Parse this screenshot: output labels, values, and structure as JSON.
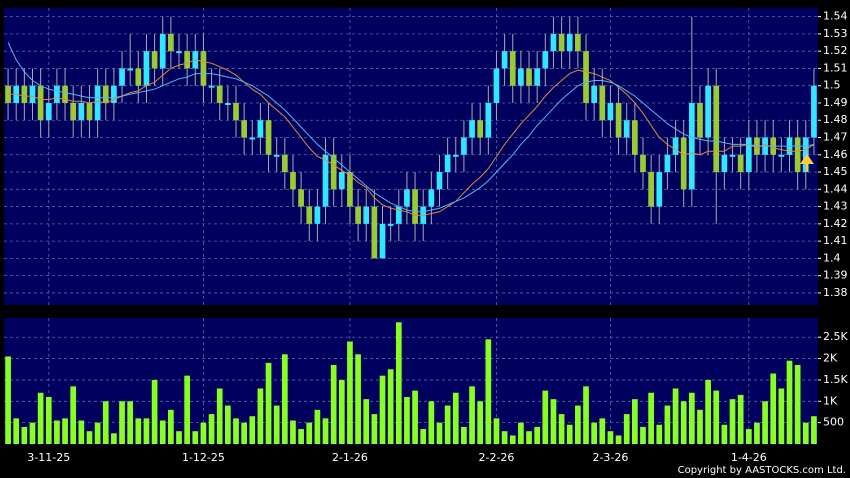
{
  "chart_data": [
    {
      "type": "candlestick",
      "open": [
        1.5,
        1.49,
        1.5,
        1.49,
        1.5,
        1.48,
        1.49,
        1.5,
        1.49,
        1.48,
        1.49,
        1.48,
        1.5,
        1.49,
        1.5,
        1.51,
        1.51,
        1.5,
        1.52,
        1.51,
        1.53,
        1.52,
        1.52,
        1.51,
        1.52,
        1.5,
        1.5,
        1.49,
        1.49,
        1.48,
        1.47,
        1.47,
        1.48,
        1.46,
        1.46,
        1.45,
        1.44,
        1.43,
        1.42,
        1.43,
        1.46,
        1.44,
        1.45,
        1.43,
        1.42,
        1.43,
        1.4,
        1.42,
        1.42,
        1.43,
        1.44,
        1.42,
        1.43,
        1.44,
        1.45,
        1.46,
        1.46,
        1.47,
        1.48,
        1.47,
        1.49,
        1.51,
        1.52,
        1.5,
        1.51,
        1.5,
        1.51,
        1.52,
        1.53,
        1.52,
        1.53,
        1.52,
        1.49,
        1.5,
        1.48,
        1.49,
        1.47,
        1.48,
        1.46,
        1.45,
        1.43,
        1.45,
        1.46,
        1.47,
        1.44,
        1.49,
        1.47,
        1.5,
        1.45,
        1.46,
        1.46,
        1.45,
        1.47,
        1.46,
        1.47,
        1.46,
        1.46,
        1.47,
        1.45,
        1.47
      ],
      "high": [
        1.51,
        1.51,
        1.51,
        1.51,
        1.51,
        1.5,
        1.51,
        1.51,
        1.5,
        1.5,
        1.5,
        1.51,
        1.51,
        1.51,
        1.52,
        1.53,
        1.52,
        1.53,
        1.53,
        1.54,
        1.54,
        1.53,
        1.53,
        1.53,
        1.53,
        1.51,
        1.51,
        1.5,
        1.5,
        1.49,
        1.48,
        1.49,
        1.49,
        1.47,
        1.47,
        1.46,
        1.45,
        1.44,
        1.44,
        1.47,
        1.47,
        1.46,
        1.46,
        1.44,
        1.44,
        1.44,
        1.43,
        1.43,
        1.44,
        1.45,
        1.45,
        1.44,
        1.45,
        1.46,
        1.47,
        1.47,
        1.48,
        1.49,
        1.49,
        1.5,
        1.52,
        1.53,
        1.53,
        1.52,
        1.52,
        1.52,
        1.53,
        1.54,
        1.54,
        1.54,
        1.54,
        1.53,
        1.51,
        1.51,
        1.5,
        1.5,
        1.49,
        1.49,
        1.47,
        1.46,
        1.46,
        1.47,
        1.48,
        1.48,
        1.54,
        1.5,
        1.51,
        1.51,
        1.47,
        1.47,
        1.47,
        1.48,
        1.48,
        1.48,
        1.48,
        1.47,
        1.48,
        1.48,
        1.48,
        1.51
      ],
      "low": [
        1.48,
        1.48,
        1.48,
        1.48,
        1.47,
        1.47,
        1.48,
        1.48,
        1.47,
        1.47,
        1.47,
        1.47,
        1.48,
        1.48,
        1.49,
        1.5,
        1.49,
        1.49,
        1.5,
        1.5,
        1.51,
        1.51,
        1.5,
        1.5,
        1.49,
        1.49,
        1.48,
        1.48,
        1.47,
        1.46,
        1.46,
        1.46,
        1.45,
        1.45,
        1.44,
        1.43,
        1.42,
        1.41,
        1.41,
        1.42,
        1.43,
        1.43,
        1.42,
        1.41,
        1.41,
        1.4,
        1.4,
        1.41,
        1.41,
        1.42,
        1.41,
        1.41,
        1.42,
        1.43,
        1.44,
        1.45,
        1.45,
        1.46,
        1.46,
        1.46,
        1.48,
        1.5,
        1.49,
        1.49,
        1.49,
        1.49,
        1.5,
        1.51,
        1.51,
        1.51,
        1.51,
        1.48,
        1.48,
        1.47,
        1.47,
        1.46,
        1.46,
        1.45,
        1.44,
        1.42,
        1.42,
        1.44,
        1.45,
        1.43,
        1.43,
        1.46,
        1.46,
        1.42,
        1.44,
        1.45,
        1.44,
        1.44,
        1.45,
        1.45,
        1.45,
        1.45,
        1.45,
        1.44,
        1.44,
        1.46
      ],
      "close": [
        1.49,
        1.5,
        1.49,
        1.5,
        1.48,
        1.49,
        1.5,
        1.49,
        1.48,
        1.49,
        1.48,
        1.5,
        1.49,
        1.5,
        1.51,
        1.51,
        1.5,
        1.52,
        1.51,
        1.53,
        1.52,
        1.52,
        1.51,
        1.52,
        1.5,
        1.5,
        1.49,
        1.49,
        1.48,
        1.47,
        1.47,
        1.48,
        1.46,
        1.46,
        1.45,
        1.44,
        1.43,
        1.42,
        1.43,
        1.46,
        1.44,
        1.45,
        1.43,
        1.42,
        1.43,
        1.4,
        1.42,
        1.42,
        1.43,
        1.44,
        1.42,
        1.43,
        1.44,
        1.45,
        1.46,
        1.46,
        1.47,
        1.48,
        1.47,
        1.49,
        1.51,
        1.52,
        1.5,
        1.51,
        1.5,
        1.51,
        1.52,
        1.53,
        1.52,
        1.53,
        1.52,
        1.49,
        1.5,
        1.48,
        1.49,
        1.47,
        1.48,
        1.46,
        1.45,
        1.43,
        1.45,
        1.46,
        1.47,
        1.44,
        1.49,
        1.47,
        1.5,
        1.45,
        1.46,
        1.46,
        1.45,
        1.47,
        1.46,
        1.47,
        1.46,
        1.46,
        1.47,
        1.45,
        1.47,
        1.5
      ],
      "up_color": "#33e6ff",
      "down_color": "#99cc33",
      "wick_color": "#aaaaaa",
      "lines": [
        {
          "color": "#e08a3c",
          "values": [
            1.495,
            1.495,
            1.494,
            1.494,
            1.492,
            1.492,
            1.493,
            1.492,
            1.491,
            1.491,
            1.49,
            1.491,
            1.49,
            1.492,
            1.494,
            1.496,
            1.497,
            1.5,
            1.502,
            1.506,
            1.51,
            1.512,
            1.513,
            1.515,
            1.514,
            1.513,
            1.511,
            1.509,
            1.506,
            1.502,
            1.498,
            1.495,
            1.49,
            1.486,
            1.482,
            1.476,
            1.47,
            1.464,
            1.459,
            1.457,
            1.454,
            1.451,
            1.448,
            1.444,
            1.441,
            1.435,
            1.431,
            1.429,
            1.428,
            1.427,
            1.425,
            1.425,
            1.426,
            1.427,
            1.43,
            1.433,
            1.438,
            1.443,
            1.447,
            1.452,
            1.459,
            1.466,
            1.472,
            1.478,
            1.483,
            1.488,
            1.494,
            1.499,
            1.503,
            1.507,
            1.509,
            1.508,
            1.507,
            1.505,
            1.503,
            1.499,
            1.495,
            1.49,
            1.484,
            1.477,
            1.47,
            1.466,
            1.463,
            1.46,
            1.461,
            1.46,
            1.462,
            1.462,
            1.462,
            1.465,
            1.465,
            1.466,
            1.464,
            1.466,
            1.464,
            1.463,
            1.462,
            1.462,
            1.463,
            1.466
          ]
        },
        {
          "color": "#5ab4f0",
          "values": [
            1.525,
            1.515,
            1.508,
            1.503,
            1.5,
            1.498,
            1.497,
            1.496,
            1.495,
            1.494,
            1.493,
            1.493,
            1.493,
            1.493,
            1.494,
            1.495,
            1.496,
            1.497,
            1.498,
            1.5,
            1.502,
            1.504,
            1.505,
            1.507,
            1.507,
            1.507,
            1.506,
            1.505,
            1.504,
            1.502,
            1.5,
            1.497,
            1.494,
            1.49,
            1.486,
            1.481,
            1.476,
            1.471,
            1.466,
            1.462,
            1.458,
            1.454,
            1.45,
            1.446,
            1.442,
            1.438,
            1.435,
            1.432,
            1.43,
            1.428,
            1.427,
            1.427,
            1.428,
            1.429,
            1.431,
            1.433,
            1.435,
            1.438,
            1.441,
            1.445,
            1.45,
            1.455,
            1.46,
            1.466,
            1.471,
            1.477,
            1.482,
            1.487,
            1.492,
            1.496,
            1.5,
            1.502,
            1.503,
            1.503,
            1.502,
            1.5,
            1.497,
            1.494,
            1.49,
            1.486,
            1.482,
            1.478,
            1.475,
            1.472,
            1.47,
            1.469,
            1.468,
            1.468,
            1.467,
            1.466,
            1.466,
            1.466,
            1.465,
            1.465,
            1.465,
            1.465,
            1.465,
            1.465,
            1.465,
            1.466
          ]
        }
      ],
      "ylim": [
        1.373,
        1.545
      ],
      "yticks": [
        1.38,
        1.39,
        1.4,
        1.41,
        1.42,
        1.43,
        1.44,
        1.45,
        1.46,
        1.47,
        1.48,
        1.49,
        1.5,
        1.51,
        1.52,
        1.53,
        1.54
      ],
      "grid": true
    },
    {
      "type": "bar",
      "categories": [
        null,
        null,
        null,
        null,
        null,
        "3-11-25",
        null,
        null,
        null,
        null,
        null,
        null,
        null,
        null,
        null,
        null,
        null,
        null,
        null,
        null,
        null,
        null,
        null,
        null,
        "1-12-25",
        null,
        null,
        null,
        null,
        null,
        null,
        null,
        null,
        null,
        null,
        null,
        null,
        null,
        null,
        null,
        null,
        null,
        "2-1-26",
        null,
        null,
        null,
        null,
        null,
        null,
        null,
        null,
        null,
        null,
        null,
        null,
        null,
        null,
        null,
        null,
        null,
        "2-2-26",
        null,
        null,
        null,
        null,
        null,
        null,
        null,
        null,
        null,
        null,
        null,
        null,
        null,
        "2-3-26",
        null,
        null,
        null,
        null,
        null,
        null,
        null,
        null,
        null,
        null,
        null,
        null,
        null,
        null,
        null,
        null,
        "1-4-26",
        null,
        null,
        null,
        null,
        null,
        null,
        null,
        null
      ],
      "values": [
        2050,
        600,
        400,
        500,
        1200,
        1100,
        550,
        600,
        1350,
        550,
        300,
        500,
        1000,
        250,
        1000,
        1000,
        600,
        600,
        1500,
        550,
        800,
        300,
        1600,
        300,
        500,
        700,
        1300,
        900,
        600,
        500,
        650,
        1300,
        1900,
        900,
        2100,
        550,
        350,
        500,
        800,
        600,
        1850,
        1500,
        2400,
        2100,
        1050,
        700,
        1600,
        1750,
        2850,
        1100,
        1250,
        350,
        1000,
        500,
        900,
        1200,
        400,
        1350,
        1000,
        2450,
        600,
        300,
        200,
        500,
        300,
        400,
        1250,
        1050,
        700,
        450,
        900,
        1350,
        500,
        600,
        300,
        200,
        700,
        1050,
        400,
        1200,
        450,
        900,
        1300,
        1000,
        1200,
        800,
        1500,
        1250,
        450,
        1050,
        1150,
        350,
        500,
        1000,
        1650,
        1300,
        1950,
        1850,
        500,
        650
      ],
      "color": "#88ff22",
      "ylim": [
        0,
        2950
      ],
      "yticks": [
        500,
        {
          "value": 1000,
          "label": "1K"
        },
        {
          "value": 1500,
          "label": "1.5K"
        },
        {
          "value": 2000,
          "label": "2K"
        },
        {
          "value": 2500,
          "label": "2.5K"
        }
      ],
      "grid": true
    }
  ],
  "copyright": "Copyright by AASTOCKS.com Ltd."
}
